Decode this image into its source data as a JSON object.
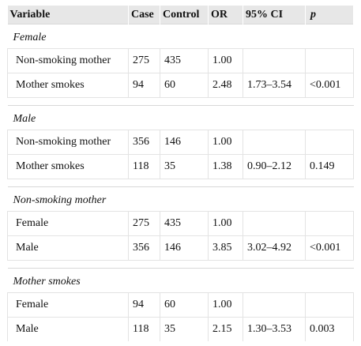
{
  "table": {
    "headers": [
      "Variable",
      "Case",
      "Control",
      "OR",
      "95% CI",
      "p"
    ],
    "groups": [
      {
        "label": "Female",
        "rows": [
          {
            "variable": "Non-smoking mother",
            "case": "275",
            "control": "435",
            "or": "1.00",
            "ci": "",
            "p": ""
          },
          {
            "variable": "Mother smokes",
            "case": "94",
            "control": "60",
            "or": "2.48",
            "ci": "1.73–3.54",
            "p": "<0.001"
          }
        ]
      },
      {
        "label": "Male",
        "rows": [
          {
            "variable": "Non-smoking mother",
            "case": "356",
            "control": "146",
            "or": "1.00",
            "ci": "",
            "p": ""
          },
          {
            "variable": "Mother smokes",
            "case": "118",
            "control": "35",
            "or": "1.38",
            "ci": "0.90–2.12",
            "p": "0.149"
          }
        ]
      },
      {
        "label": "Non-smoking mother",
        "rows": [
          {
            "variable": "Female",
            "case": "275",
            "control": "435",
            "or": "1.00",
            "ci": "",
            "p": ""
          },
          {
            "variable": "Male",
            "case": "356",
            "control": "146",
            "or": "3.85",
            "ci": "3.02–4.92",
            "p": "<0.001"
          }
        ]
      },
      {
        "label": "Mother smokes",
        "rows": [
          {
            "variable": "Female",
            "case": "94",
            "control": "60",
            "or": "1.00",
            "ci": "",
            "p": ""
          },
          {
            "variable": "Male",
            "case": "118",
            "control": "35",
            "or": "2.15",
            "ci": "1.30–3.53",
            "p": "0.003"
          }
        ]
      }
    ]
  }
}
